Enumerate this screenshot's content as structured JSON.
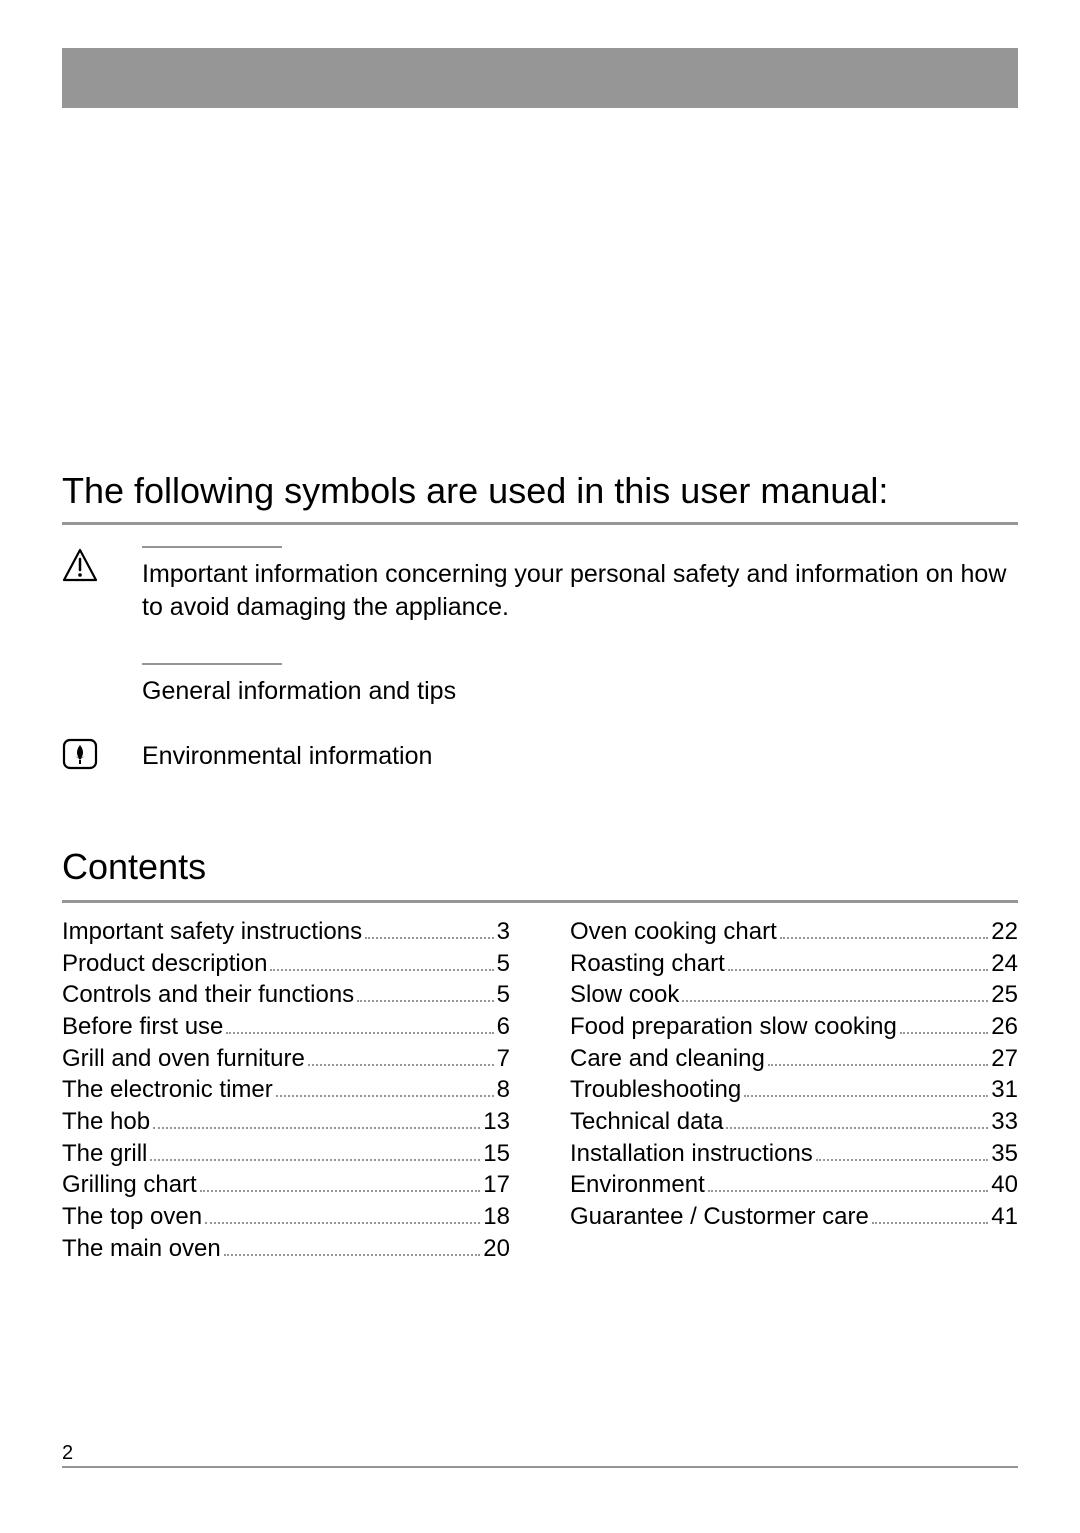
{
  "page_number": "2",
  "intro_heading": "The following symbols are used in this user manual:",
  "symbols": {
    "warning": {
      "text": "Important information concerning your personal safety and information on how to avoid damaging the appliance."
    },
    "info": {
      "text": "General information and tips"
    },
    "eco": {
      "text": "Environmental information"
    }
  },
  "contents_heading": "Contents",
  "toc": {
    "left": [
      {
        "title": "Important safety instructions",
        "page": "3"
      },
      {
        "title": "Product description",
        "page": "5"
      },
      {
        "title": "Controls and their functions",
        "page": "5"
      },
      {
        "title": "Before first use",
        "page": "6"
      },
      {
        "title": "Grill and oven furniture",
        "page": "7"
      },
      {
        "title": "The electronic timer",
        "page": "8"
      },
      {
        "title": "The hob",
        "page": "13"
      },
      {
        "title": "The grill",
        "page": "15"
      },
      {
        "title": "Grilling chart",
        "page": "17"
      },
      {
        "title": "The top oven",
        "page": "18"
      },
      {
        "title": "The main oven",
        "page": "20"
      }
    ],
    "right": [
      {
        "title": "Oven cooking chart",
        "page": "22"
      },
      {
        "title": "Roasting chart",
        "page": "24"
      },
      {
        "title": "Slow cook",
        "page": "25"
      },
      {
        "title": "Food preparation   slow cooking",
        "page": "26"
      },
      {
        "title": "Care and cleaning",
        "page": "27"
      },
      {
        "title": "Troubleshooting",
        "page": "31"
      },
      {
        "title": "Technical data",
        "page": "33"
      },
      {
        "title": "Installation instructions",
        "page": "35"
      },
      {
        "title": "Environment",
        "page": "40"
      },
      {
        "title": "Guarantee / Custormer care",
        "page": "41"
      }
    ]
  },
  "colors": {
    "accent": "#969696",
    "text": "#000000",
    "background": "#ffffff"
  }
}
